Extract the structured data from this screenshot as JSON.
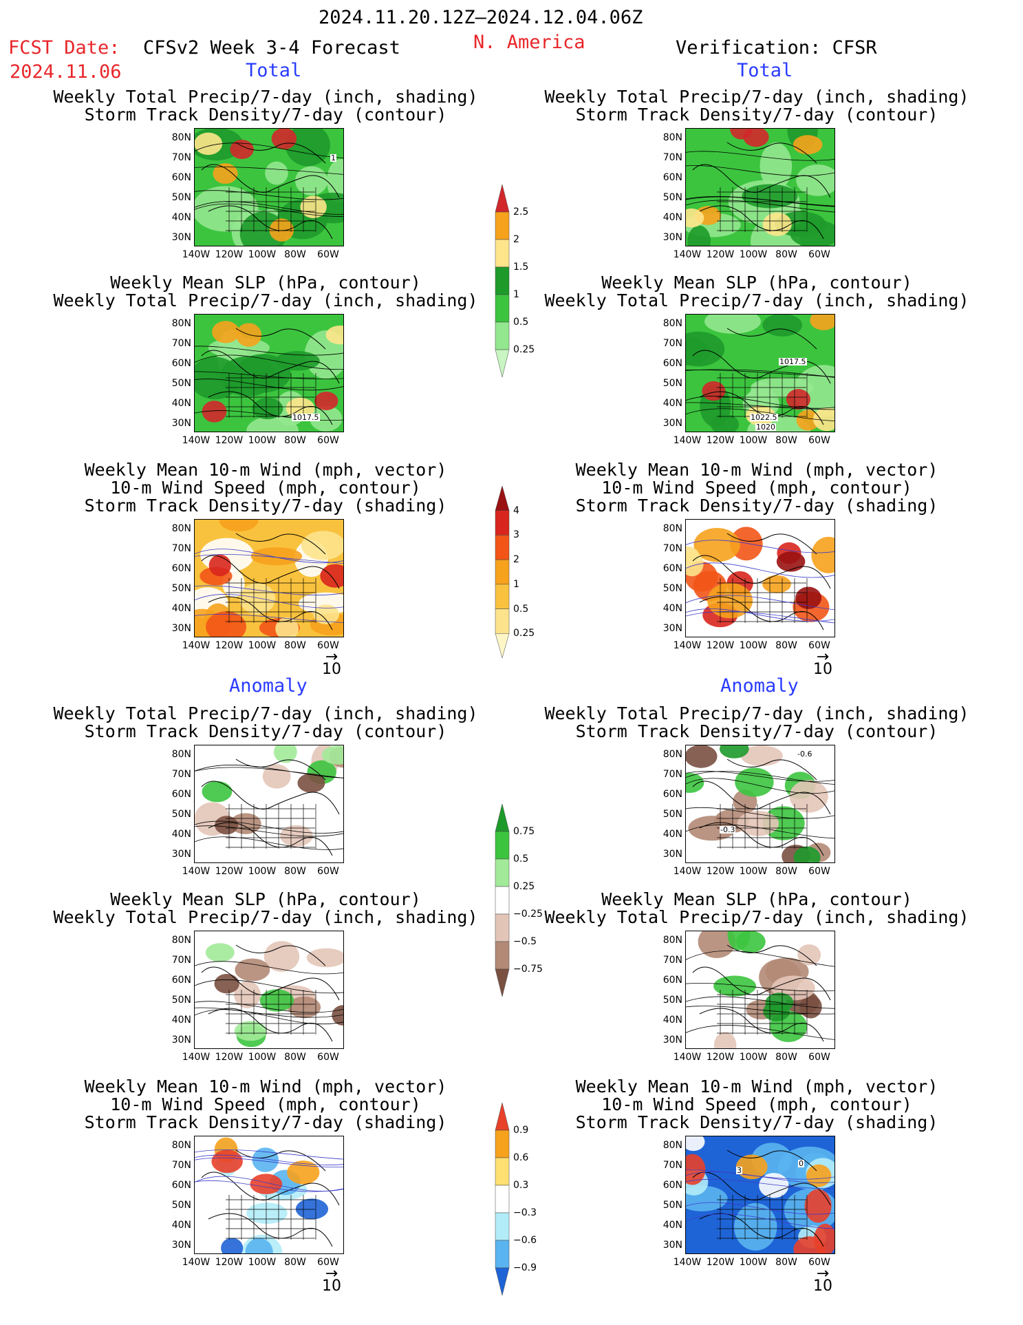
{
  "header": {
    "date_range": "2024.11.20.12Z–2024.12.04.06Z",
    "fcst_label": "FCST Date:",
    "fcst_date": "2024.11.06",
    "model": "CFSv2 Week 3-4 Forecast",
    "region": "N. America",
    "verification": "Verification: CFSR"
  },
  "sections": {
    "total": "Total",
    "anomaly": "Anomaly"
  },
  "panel_titles": {
    "precip_storm": [
      "Weekly Total Precip/7-day (inch, shading)",
      "Storm Track Density/7-day (contour)"
    ],
    "slp_precip": [
      "Weekly Mean SLP (hPa, contour)",
      "Weekly Total Precip/7-day (inch, shading)"
    ],
    "wind_storm": [
      "Weekly Mean 10-m Wind (mph, vector)",
      "10-m Wind Speed (mph, contour)",
      "Storm Track Density/7-day (shading)"
    ]
  },
  "axes": {
    "lat_ticks": [
      "80N",
      "70N",
      "60N",
      "50N",
      "40N",
      "30N"
    ],
    "lon_ticks": [
      "140W",
      "120W",
      "100W",
      "80W",
      "60W"
    ]
  },
  "vector_ref": "10",
  "contour_labels": {
    "fc_precip_storm": "1",
    "fc_slp": "1017.5",
    "ver_slp_a": "1017.5",
    "ver_slp_b": "1022.5",
    "ver_slp_c": "1020",
    "ver_anom_storm": "-0.6",
    "ver_anom_storm_b": "-0.3",
    "ver_anom_wind_a": "3",
    "ver_anom_wind_b": "0"
  },
  "colorbars": {
    "precip_total": {
      "labels": [
        "2.5",
        "2",
        "1.5",
        "1",
        "0.5",
        "0.25"
      ],
      "colors": [
        "#d2282b",
        "#f6a21d",
        "#fee58b",
        "#1e9a2b",
        "#3cc43f",
        "#93e78f",
        "#c8f5c2"
      ]
    },
    "storm_total": {
      "labels": [
        "4",
        "3",
        "2",
        "1",
        "0.5",
        "0.25"
      ],
      "colors": [
        "#9a1212",
        "#d8261e",
        "#f25517",
        "#f6a21d",
        "#f9c23e",
        "#fde38c",
        "#fff6c7"
      ]
    },
    "precip_anom": {
      "labels": [
        "0.75",
        "0.5",
        "0.25",
        "−0.25",
        "−0.5",
        "−0.75"
      ],
      "colors": [
        "#1e9a2b",
        "#3cc43f",
        "#a2ea99",
        "#ffffff",
        "#e3c5b8",
        "#b38a76",
        "#7a5041"
      ]
    },
    "storm_anom": {
      "labels": [
        "0.9",
        "0.6",
        "0.3",
        "−0.3",
        "−0.6",
        "−0.9"
      ],
      "colors": [
        "#e8402a",
        "#f6a21d",
        "#fde071",
        "#ffffff",
        "#b2ecf8",
        "#5ab4f0",
        "#1f64d6"
      ]
    }
  },
  "colors": {
    "header_red": "#e8262a",
    "section_blue": "#2a3cff",
    "contour_wind": "#3a3acb"
  }
}
